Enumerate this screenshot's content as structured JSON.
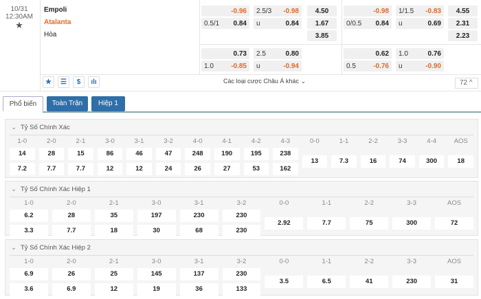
{
  "match": {
    "date": "10/31",
    "time": "12:30AM",
    "home": "Empoli",
    "away": "Atalanta",
    "draw": "Hòa"
  },
  "colors": {
    "accent": "#2f6fa8",
    "negative": "#e06a2a",
    "away_team": "#e06a2a"
  },
  "odds": {
    "full": {
      "hdp": [
        {
          "l": "",
          "v": "-0.96"
        },
        {
          "l": "0.5/1",
          "v": "0.84"
        }
      ],
      "ou": [
        {
          "l": "2.5/3",
          "v": "-0.98"
        },
        {
          "l": "u",
          "v": "0.84"
        }
      ],
      "x12": [
        "4.50",
        "1.67",
        "3.85"
      ],
      "hdp2": [
        {
          "l": "",
          "v": "0.73"
        },
        {
          "l": "1.0",
          "v": "-0.85"
        }
      ],
      "ou2": [
        {
          "l": "2.5",
          "v": "0.80"
        },
        {
          "l": "u",
          "v": "-0.94"
        }
      ]
    },
    "half": {
      "hdp": [
        {
          "l": "",
          "v": "-0.98"
        },
        {
          "l": "0/0.5",
          "v": "0.84"
        }
      ],
      "ou": [
        {
          "l": "1/1.5",
          "v": "-0.83"
        },
        {
          "l": "u",
          "v": "0.69"
        }
      ],
      "x12": [
        "4.55",
        "2.31",
        "2.23"
      ],
      "hdp2": [
        {
          "l": "",
          "v": "0.62"
        },
        {
          "l": "0.5",
          "v": "-0.76"
        }
      ],
      "ou2": [
        {
          "l": "1.0",
          "v": "0.76"
        },
        {
          "l": "u",
          "v": "-0.90"
        }
      ]
    }
  },
  "toolbar": {
    "icons": [
      "star-icon",
      "list-icon",
      "dollar-icon",
      "chart-icon"
    ],
    "more_label": "Các loại cược Châu Á khác",
    "count": "72"
  },
  "tabs": [
    "Phổ biến",
    "Toàn Trận",
    "Hiệp 1"
  ],
  "sections": [
    {
      "title": "Tỷ Số Chính Xác",
      "pairs": [
        [
          "1-0",
          "14",
          "7.2"
        ],
        [
          "2-0",
          "28",
          "7.7"
        ],
        [
          "2-1",
          "15",
          "7.7"
        ],
        [
          "3-0",
          "86",
          "12"
        ],
        [
          "3-1",
          "46",
          "12"
        ],
        [
          "3-2",
          "47",
          "24"
        ],
        [
          "4-0",
          "248",
          "26"
        ],
        [
          "4-1",
          "190",
          "27"
        ],
        [
          "4-2",
          "195",
          "53"
        ],
        [
          "4-3",
          "238",
          "162"
        ]
      ],
      "singles": [
        [
          "0-0",
          "13"
        ],
        [
          "1-1",
          "7.3"
        ],
        [
          "2-2",
          "16"
        ],
        [
          "3-3",
          "74"
        ],
        [
          "4-4",
          "300"
        ],
        [
          "AOS",
          "18"
        ]
      ]
    },
    {
      "title": "Tỷ Số Chính Xác Hiệp 1",
      "pairs": [
        [
          "1-0",
          "6.2",
          "3.3"
        ],
        [
          "2-0",
          "28",
          "7.7"
        ],
        [
          "2-1",
          "35",
          "18"
        ],
        [
          "3-0",
          "197",
          "30"
        ],
        [
          "3-1",
          "230",
          "68"
        ],
        [
          "3-2",
          "230",
          "230"
        ]
      ],
      "singles": [
        [
          "0-0",
          "2.92"
        ],
        [
          "1-1",
          "7.7"
        ],
        [
          "2-2",
          "75"
        ],
        [
          "3-3",
          "300"
        ],
        [
          "AOS",
          "72"
        ]
      ]
    },
    {
      "title": "Tỷ Số Chính Xác Hiệp 2",
      "pairs": [
        [
          "1-0",
          "6.9",
          "3.6"
        ],
        [
          "2-0",
          "26",
          "6.9"
        ],
        [
          "2-1",
          "25",
          "12"
        ],
        [
          "3-0",
          "145",
          "19"
        ],
        [
          "3-1",
          "137",
          "36"
        ],
        [
          "3-2",
          "230",
          "133"
        ]
      ],
      "singles": [
        [
          "0-0",
          "3.5"
        ],
        [
          "1-1",
          "6.5"
        ],
        [
          "2-2",
          "41"
        ],
        [
          "3-3",
          "230"
        ],
        [
          "AOS",
          "31"
        ]
      ]
    }
  ]
}
